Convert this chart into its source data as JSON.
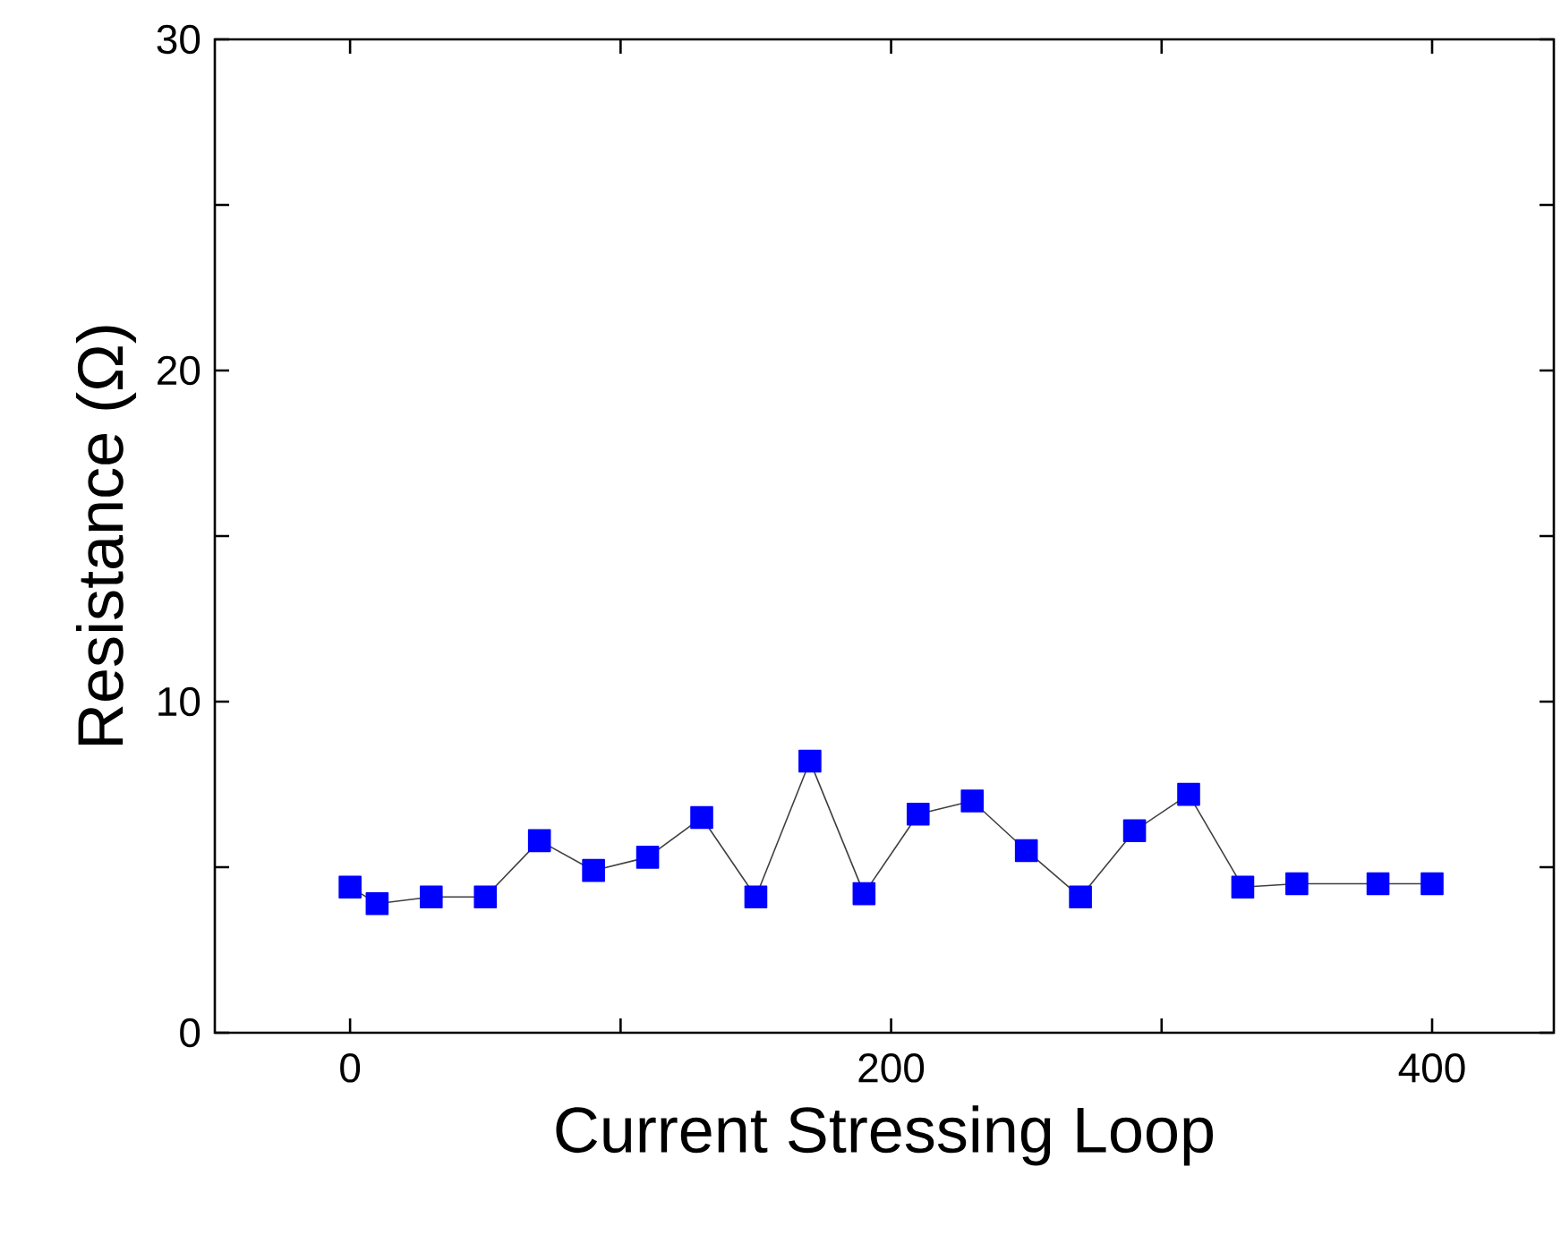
{
  "chart_data": {
    "type": "line",
    "xlabel": "Current Stressing Loop",
    "ylabel": "Resistance (Ω)",
    "x": [
      0,
      10,
      30,
      50,
      70,
      90,
      110,
      130,
      150,
      170,
      190,
      210,
      230,
      250,
      270,
      290,
      310,
      330,
      350,
      380,
      400
    ],
    "series": [
      {
        "color": "#0000ff",
        "values": [
          4.4,
          3.9,
          4.1,
          4.1,
          5.8,
          4.9,
          5.3,
          6.5,
          4.1,
          8.2,
          4.2,
          6.6,
          7.0,
          5.5,
          4.1,
          6.1,
          7.2,
          4.4,
          4.5,
          4.5,
          4.5
        ]
      }
    ],
    "xlim": [
      -50,
      445
    ],
    "ylim": [
      0,
      30
    ],
    "xticks": [
      0,
      {
        "value": 100,
        "label": null
      },
      200,
      {
        "value": 300,
        "label": null
      },
      400
    ],
    "yticks": [
      0,
      {
        "value": 5,
        "label": null
      },
      10,
      {
        "value": 15,
        "label": null
      },
      20,
      {
        "value": 25,
        "label": null
      },
      30
    ],
    "marker": "square",
    "line_style": "solid"
  }
}
